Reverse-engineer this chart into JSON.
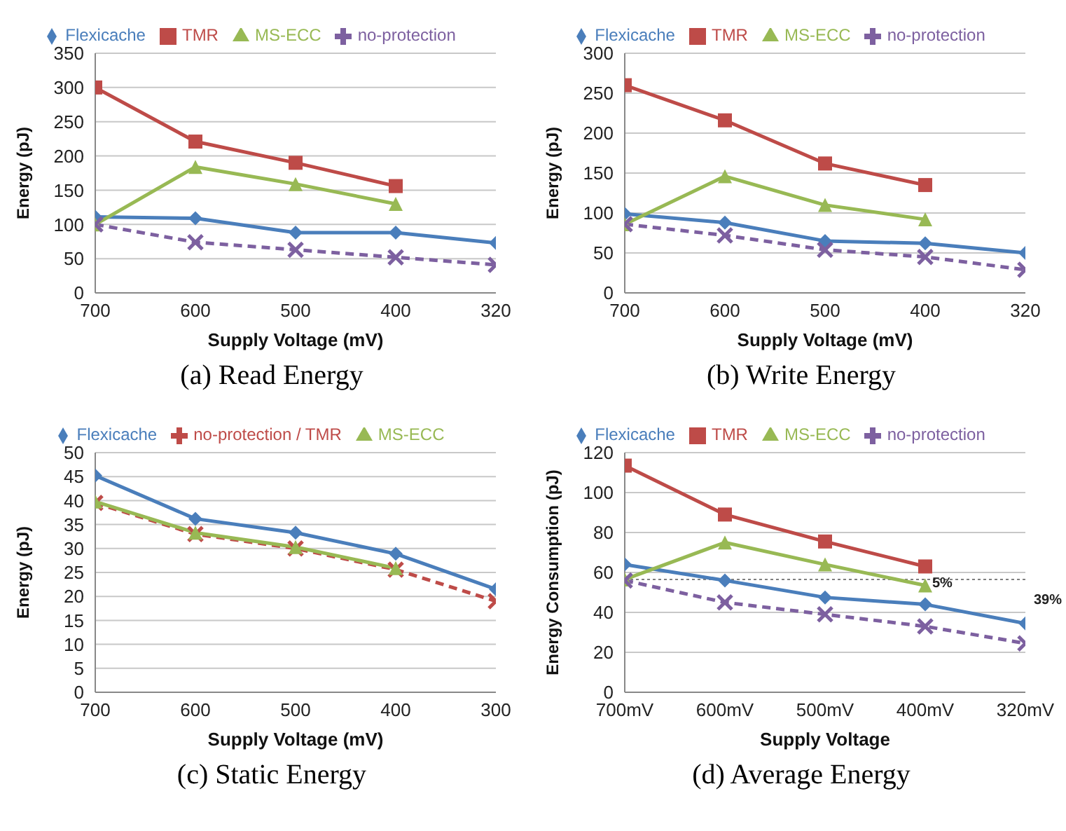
{
  "chart_data": [
    {
      "type": "line",
      "title": "(a) Read Energy",
      "xlabel": "Supply Voltage (mV)",
      "ylabel": "Energy (pJ)",
      "categories": [
        "700",
        "600",
        "500",
        "400",
        "320"
      ],
      "ylim": [
        0,
        350
      ],
      "yticks": [
        0,
        50,
        100,
        150,
        200,
        250,
        300,
        350
      ],
      "grid": "y",
      "legend": "top",
      "series": [
        {
          "name": "Flexicache",
          "color": "#4a7ebb",
          "marker": "diamond",
          "line_style": "solid",
          "values": [
            111,
            109,
            88,
            88,
            73
          ]
        },
        {
          "name": "TMR",
          "color": "#be4b48",
          "marker": "square",
          "line_style": "solid",
          "values": [
            300,
            221,
            190,
            156,
            null
          ]
        },
        {
          "name": "MS-ECC",
          "color": "#98b954",
          "marker": "triangle",
          "line_style": "solid",
          "values": [
            100,
            184,
            159,
            130,
            null
          ]
        },
        {
          "name": "no-protection",
          "color": "#7d60a0",
          "marker": "cross",
          "line_style": "dashed",
          "values": [
            100,
            74,
            63,
            52,
            41
          ]
        }
      ]
    },
    {
      "type": "line",
      "title": "(b) Write Energy",
      "xlabel": "Supply Voltage (mV)",
      "ylabel": "Energy (pJ)",
      "categories": [
        "700",
        "600",
        "500",
        "400",
        "320"
      ],
      "ylim": [
        0,
        300
      ],
      "yticks": [
        0,
        50,
        100,
        150,
        200,
        250,
        300
      ],
      "grid": "y",
      "legend": "top",
      "series": [
        {
          "name": "Flexicache",
          "color": "#4a7ebb",
          "marker": "diamond",
          "line_style": "solid",
          "values": [
            99,
            88,
            65,
            62,
            50
          ]
        },
        {
          "name": "TMR",
          "color": "#be4b48",
          "marker": "square",
          "line_style": "solid",
          "values": [
            260,
            216,
            162,
            135,
            null
          ]
        },
        {
          "name": "MS-ECC",
          "color": "#98b954",
          "marker": "triangle",
          "line_style": "solid",
          "values": [
            86,
            146,
            110,
            92,
            null
          ]
        },
        {
          "name": "no-protection",
          "color": "#7d60a0",
          "marker": "cross",
          "line_style": "dashed",
          "values": [
            86,
            72,
            54,
            45,
            29
          ]
        }
      ]
    },
    {
      "type": "line",
      "title": "(c) Static Energy",
      "xlabel": "Supply Voltage (mV)",
      "ylabel": "Energy (pJ)",
      "categories": [
        "700",
        "600",
        "500",
        "400",
        "300"
      ],
      "ylim": [
        0,
        50
      ],
      "yticks": [
        0,
        5,
        10,
        15,
        20,
        25,
        30,
        35,
        40,
        45,
        50
      ],
      "grid": "y",
      "legend": "top",
      "series": [
        {
          "name": "Flexicache",
          "color": "#4a7ebb",
          "marker": "diamond",
          "line_style": "solid",
          "values": [
            45.2,
            36.2,
            33.3,
            28.9,
            21.5
          ]
        },
        {
          "name": "no-protection / TMR",
          "color": "#be4b48",
          "marker": "cross",
          "line_style": "dashed",
          "values": [
            39.5,
            33,
            30,
            25.6,
            19
          ]
        },
        {
          "name": "MS-ECC",
          "color": "#98b954",
          "marker": "triangle",
          "line_style": "solid",
          "values": [
            39.8,
            33.3,
            30.3,
            25.9,
            null
          ]
        }
      ]
    },
    {
      "type": "line",
      "title": "(d) Average Energy",
      "xlabel": "Supply Voltage",
      "ylabel": "Energy Consumption (pJ)",
      "categories": [
        "700mV",
        "600mV",
        "500mV",
        "400mV",
        "320mV"
      ],
      "ylim": [
        0,
        120
      ],
      "yticks": [
        0,
        20,
        40,
        60,
        80,
        100,
        120
      ],
      "grid": "y",
      "legend": "top",
      "series": [
        {
          "name": "Flexicache",
          "color": "#4a7ebb",
          "marker": "diamond",
          "line_style": "solid",
          "values": [
            64,
            56,
            47.5,
            44,
            34.5
          ]
        },
        {
          "name": "TMR",
          "color": "#be4b48",
          "marker": "square",
          "line_style": "solid",
          "values": [
            113.5,
            89,
            75.5,
            63,
            null
          ]
        },
        {
          "name": "MS-ECC",
          "color": "#98b954",
          "marker": "triangle",
          "line_style": "solid",
          "values": [
            56.5,
            75,
            64,
            53.5,
            null
          ]
        },
        {
          "name": "no-protection",
          "color": "#7d60a0",
          "marker": "cross",
          "line_style": "dashed",
          "values": [
            56,
            45,
            39,
            33,
            24.5
          ]
        }
      ],
      "ref_lines": [
        {
          "axis": "y",
          "value": 56.5,
          "label": null,
          "color": "#7f7f7f",
          "line_style": "dotted"
        }
      ],
      "annotations": [
        {
          "text": "5%",
          "x": "400mV",
          "y": 55
        },
        "39%"
      ]
    }
  ]
}
